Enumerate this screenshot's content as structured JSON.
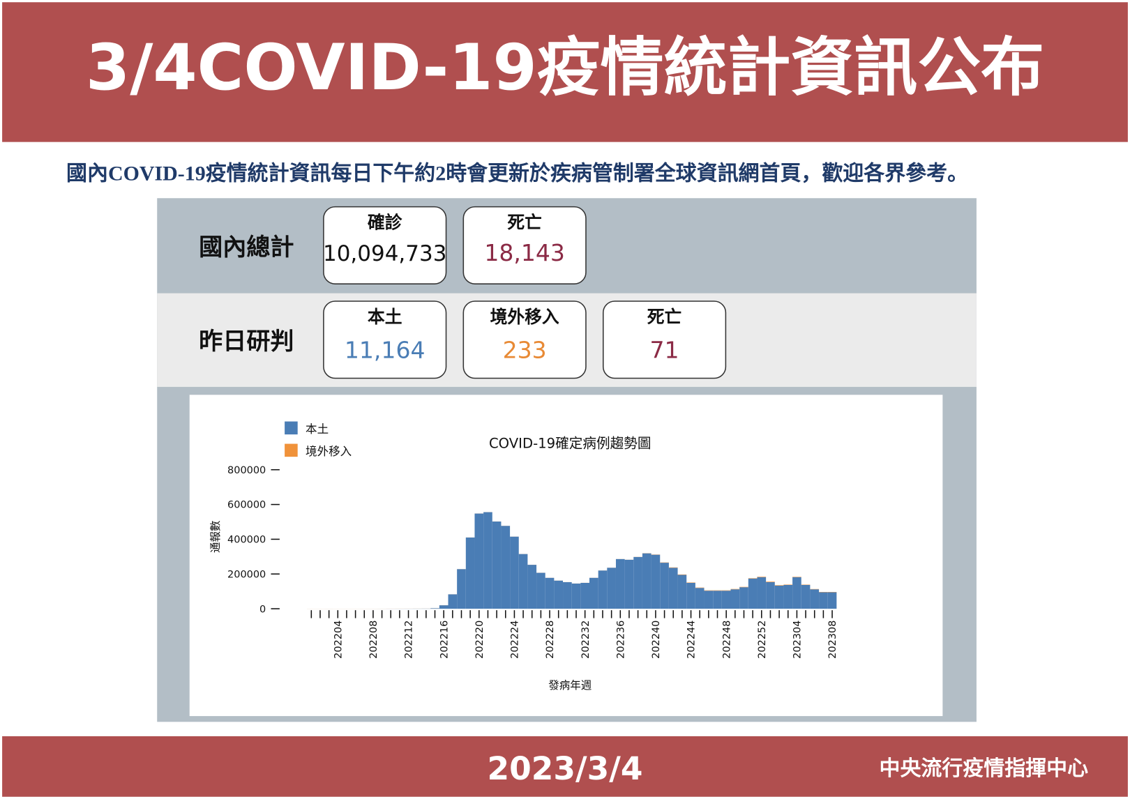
{
  "header": {
    "title": "3/4COVID-19疫情統計資訊公布",
    "subtitle": "國內COVID-19疫情統計資訊每日下午約2時會更新於疾病管制署全球資訊網首頁，歡迎各界參考。"
  },
  "summary": [
    {
      "label": "國內總計",
      "cards": [
        {
          "label": "確診",
          "value": "10,094,733",
          "color": "#111111"
        },
        {
          "label": "死亡",
          "value": "18,143",
          "color": "#8b2a45"
        }
      ]
    },
    {
      "label": "昨日研判",
      "cards": [
        {
          "label": "本土",
          "value": "11,164",
          "color": "#4a7db5"
        },
        {
          "label": "境外移入",
          "value": "233",
          "color": "#e88a35"
        },
        {
          "label": "死亡",
          "value": "71",
          "color": "#8b2a45"
        }
      ]
    }
  ],
  "chart_data": {
    "type": "bar",
    "stacked": true,
    "title": "COVID-19確定病例趨勢圖",
    "y_label": "通報數",
    "x_label": "發病年週",
    "categories": [
      null,
      null,
      null,
      "202204",
      null,
      null,
      null,
      "202208",
      null,
      null,
      null,
      "202212",
      null,
      null,
      null,
      "202216",
      null,
      null,
      null,
      "202220",
      null,
      null,
      null,
      "202224",
      null,
      null,
      null,
      "202228",
      null,
      null,
      null,
      "202232",
      null,
      null,
      null,
      "202236",
      null,
      null,
      null,
      "202240",
      null,
      null,
      null,
      "202244",
      null,
      null,
      null,
      "202248",
      null,
      null,
      null,
      "202252",
      null,
      null,
      null,
      "202304",
      null,
      null,
      null,
      "202308"
    ],
    "series": [
      {
        "name": "本土",
        "color": "#4a7db5",
        "values": [
          100,
          100,
          150,
          100,
          80,
          100,
          150,
          200,
          300,
          400,
          500,
          600,
          800,
          1000,
          3000,
          20000,
          83000,
          228000,
          410000,
          548000,
          556000,
          502000,
          477000,
          415000,
          315000,
          253000,
          207000,
          178000,
          162000,
          153000,
          145000,
          149000,
          178000,
          220000,
          236000,
          286000,
          282000,
          298000,
          319000,
          311000,
          265000,
          236000,
          195000,
          149000,
          120000,
          104000,
          104000,
          104000,
          112000,
          124000,
          174000,
          182000,
          153000,
          133000,
          137000,
          182000,
          137000,
          112000,
          95000,
          95000
        ]
      },
      {
        "name": "境外移入",
        "color": "#f0923a",
        "values": [
          300,
          300,
          300,
          300,
          300,
          300,
          300,
          300,
          300,
          300,
          300,
          300,
          300,
          300,
          300,
          300,
          300,
          300,
          300,
          300,
          300,
          300,
          300,
          300,
          300,
          300,
          300,
          300,
          300,
          300,
          300,
          300,
          300,
          300,
          300,
          300,
          300,
          500,
          800,
          1200,
          1500,
          2000,
          2000,
          2000,
          2000,
          2000,
          2000,
          2000,
          2000,
          2000,
          2000,
          2500,
          3000,
          2500,
          2000,
          2000,
          1800,
          1600,
          1600,
          1600
        ]
      }
    ],
    "ylim": [
      0,
      800000
    ],
    "yticks": [
      0,
      200000,
      400000,
      600000,
      800000
    ]
  },
  "footer": {
    "date": "2023/3/4",
    "org": "中央流行疫情指揮中心"
  }
}
